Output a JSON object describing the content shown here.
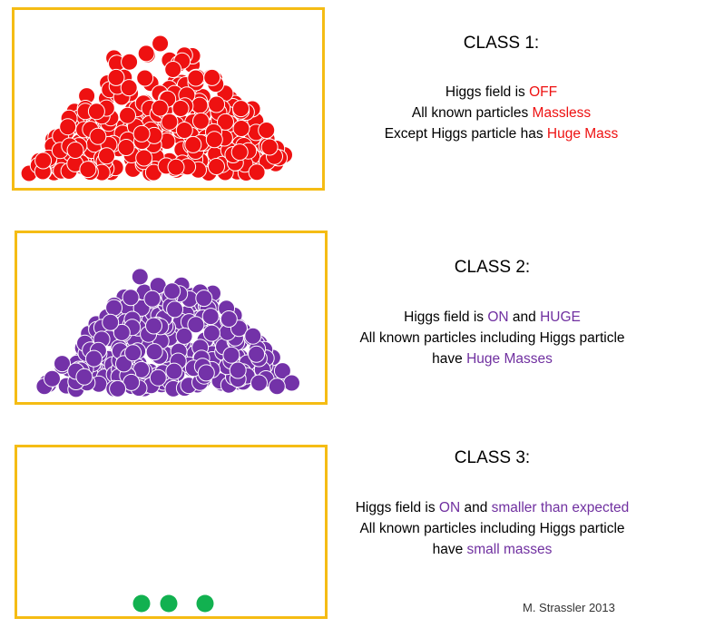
{
  "colors": {
    "frame": "#f5bc14",
    "red_particle": "#ee1111",
    "purple_particle": "#7332a8",
    "green_particle": "#12b150",
    "red_accent": "#ee1111",
    "purple_accent": "#7030a0"
  },
  "panels": [
    {
      "title": "CLASS 1:",
      "particle_color": "red",
      "pile": "large-heap",
      "lines": [
        [
          {
            "t": "Higgs field is "
          },
          {
            "t": "OFF",
            "c": "red"
          }
        ],
        [
          {
            "t": "All known particles "
          },
          {
            "t": "Massless",
            "c": "red"
          }
        ],
        [
          {
            "t": "Except Higgs particle has "
          },
          {
            "t": "Huge Mass",
            "c": "red"
          }
        ]
      ]
    },
    {
      "title": "CLASS 2:",
      "particle_color": "purple",
      "pile": "large-heap",
      "lines": [
        [
          {
            "t": "Higgs field is "
          },
          {
            "t": "ON",
            "c": "purple"
          },
          {
            "t": " and "
          },
          {
            "t": "HUGE",
            "c": "purple"
          }
        ],
        [
          {
            "t": "All known particles including Higgs particle"
          }
        ],
        [
          {
            "t": "have "
          },
          {
            "t": "Huge Masses",
            "c": "purple"
          }
        ]
      ]
    },
    {
      "title": "CLASS 3:",
      "particle_color": "green",
      "pile": "three-balls",
      "lines": [
        [
          {
            "t": "Higgs field is "
          },
          {
            "t": "ON",
            "c": "purple"
          },
          {
            "t": " and "
          },
          {
            "t": "smaller than expected",
            "c": "purple"
          }
        ],
        [
          {
            "t": "All known particles including Higgs particle"
          }
        ],
        [
          {
            "t": "have "
          },
          {
            "t": "small masses",
            "c": "purple"
          }
        ]
      ]
    }
  ],
  "credit": "M. Strassler 2013"
}
